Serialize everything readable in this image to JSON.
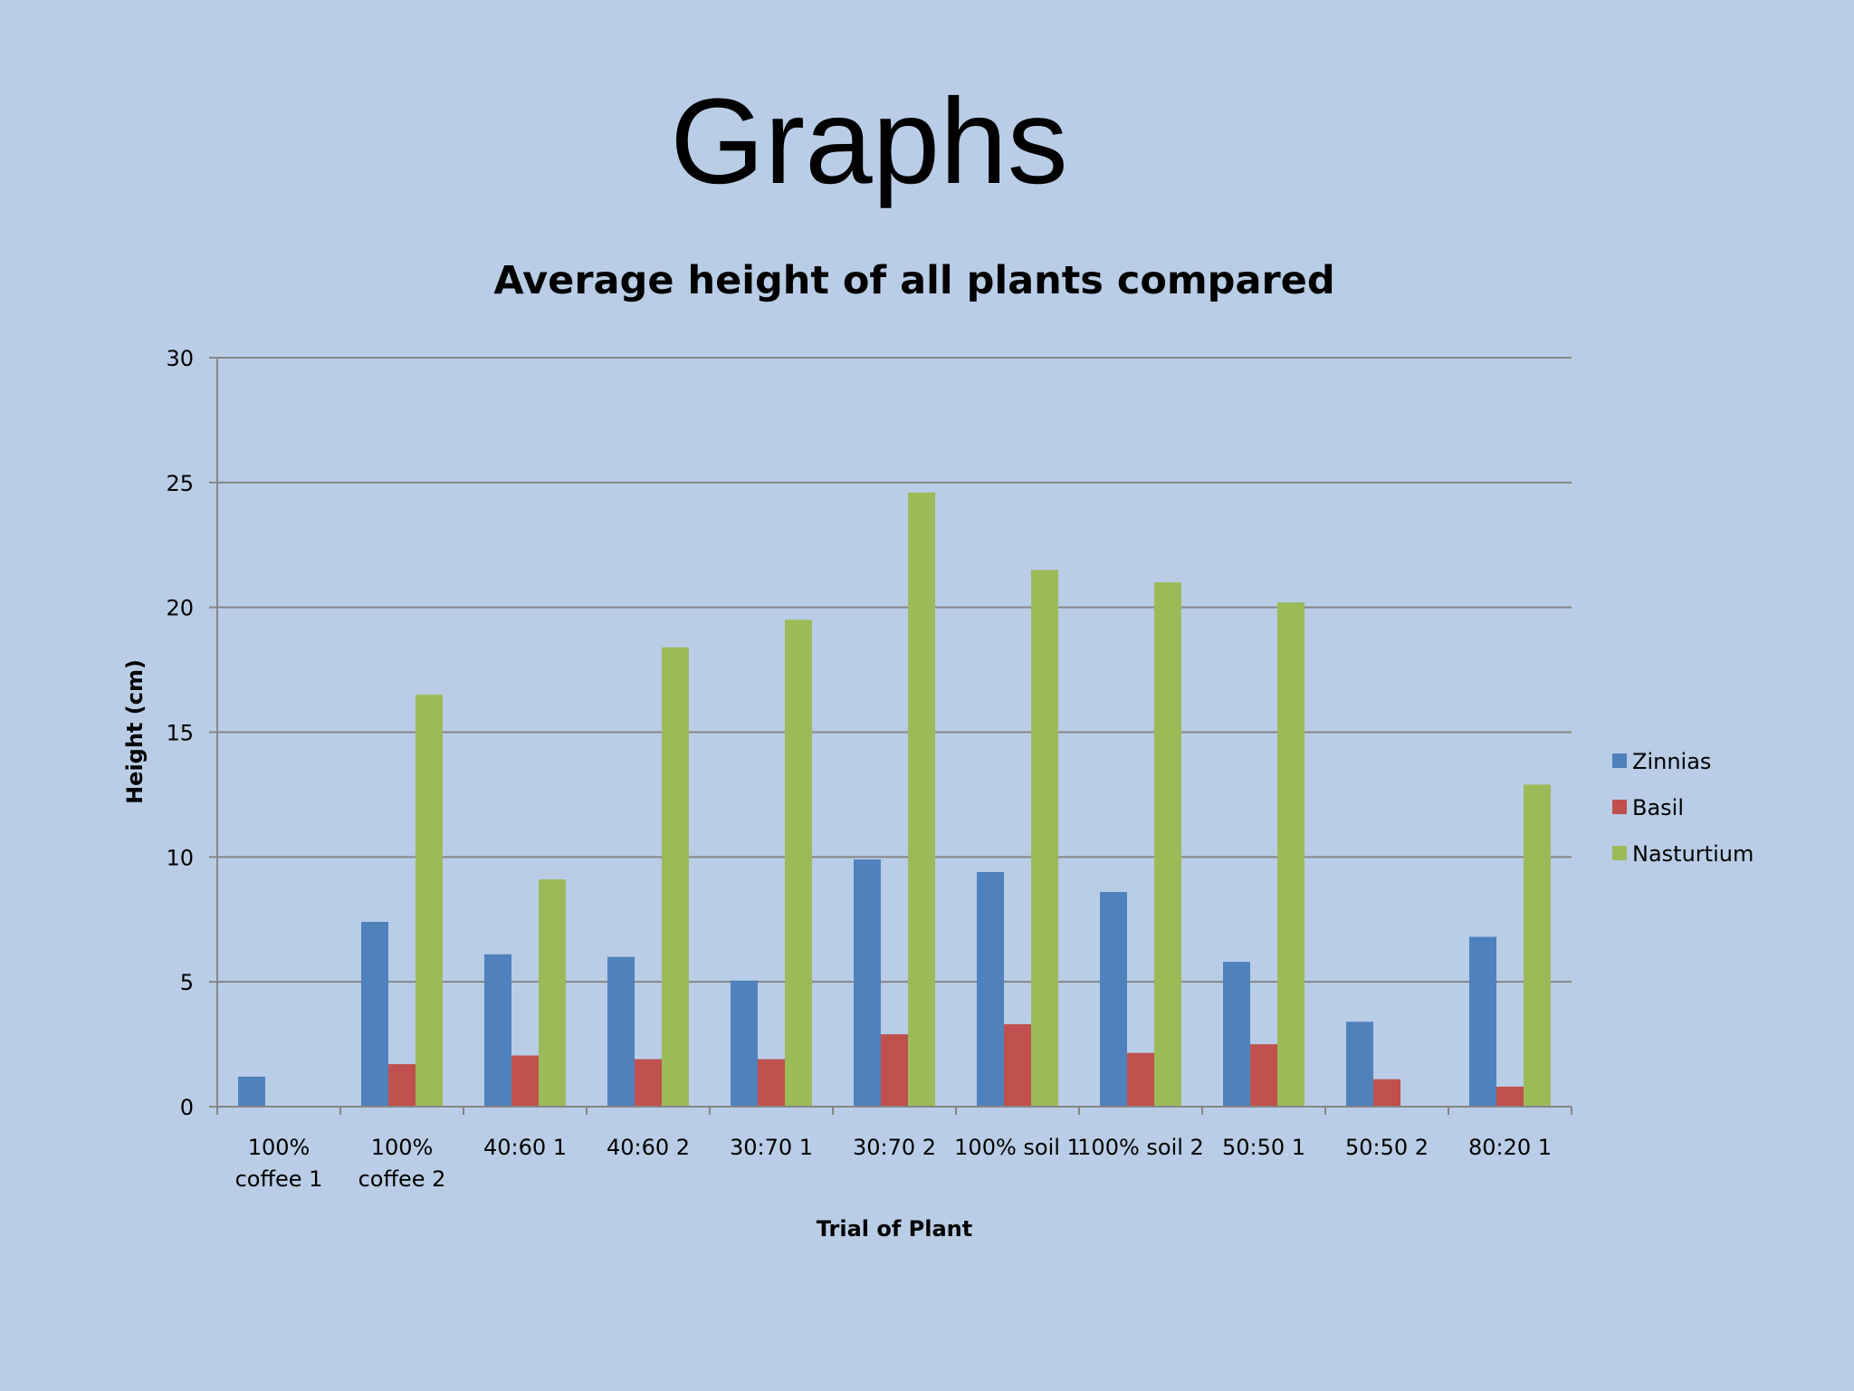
{
  "slide": {
    "title": "Graphs"
  },
  "colors": {
    "background": "#b9cde6",
    "gridline": "#868686",
    "axis": "#868686",
    "text": "#000000"
  },
  "chart_data": {
    "type": "bar",
    "title": "Average height of all plants compared",
    "xlabel": "Trial of Plant",
    "ylabel": "Height (cm)",
    "ylim": [
      0,
      30
    ],
    "yticks": [
      0,
      5,
      10,
      15,
      20,
      25,
      30
    ],
    "grid": true,
    "legend_position": "right",
    "categories": [
      [
        "100%",
        "coffee 1"
      ],
      [
        "100%",
        "coffee 2"
      ],
      [
        "40:60 1"
      ],
      [
        "40:60 2"
      ],
      [
        "30:70 1"
      ],
      [
        "30:70 2"
      ],
      [
        "100% soil 1"
      ],
      [
        "100% soil 2"
      ],
      [
        "50:50 1"
      ],
      [
        "50:50 2"
      ],
      [
        "80:20 1"
      ]
    ],
    "series": [
      {
        "name": "Zinnias",
        "color": "#4f81bd",
        "values": [
          1.2,
          7.4,
          6.1,
          6.0,
          5.05,
          9.9,
          9.4,
          8.6,
          5.8,
          3.4,
          6.8
        ]
      },
      {
        "name": "Basil",
        "color": "#c0504d",
        "values": [
          0,
          1.7,
          2.05,
          1.9,
          1.9,
          2.9,
          3.3,
          2.15,
          2.5,
          1.1,
          0.8
        ]
      },
      {
        "name": "Nasturtium",
        "color": "#9bbb59",
        "values": [
          0,
          16.5,
          9.1,
          18.4,
          19.5,
          24.6,
          21.5,
          21.0,
          20.2,
          0,
          12.9
        ]
      }
    ]
  }
}
